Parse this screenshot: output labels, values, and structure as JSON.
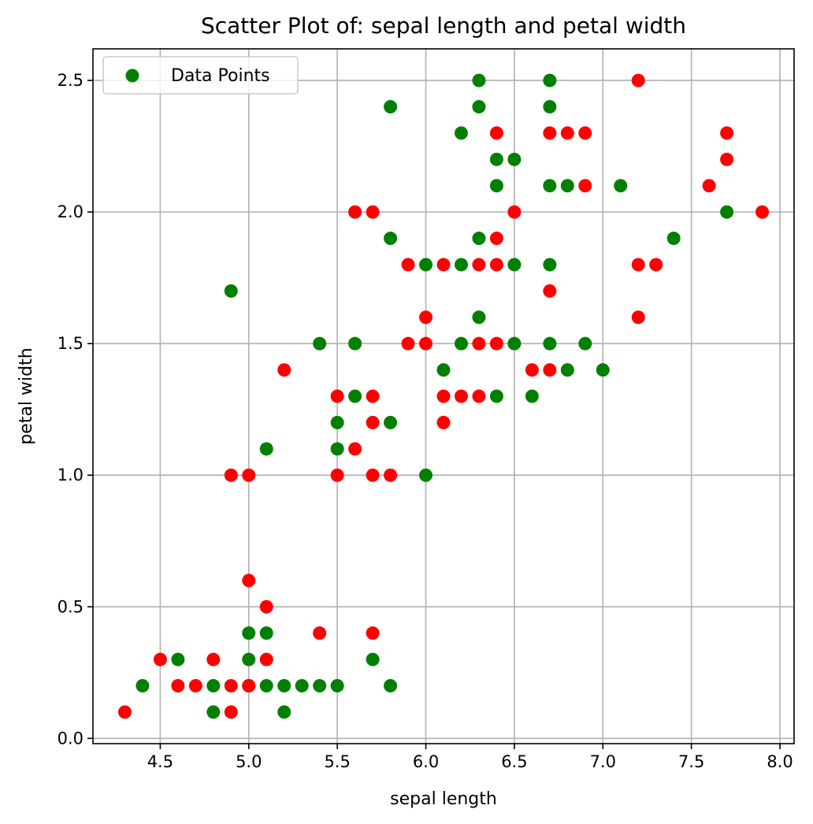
{
  "chart_data": {
    "type": "scatter",
    "title": "Scatter Plot of: sepal length and petal width",
    "xlabel": "sepal length",
    "ylabel": "petal width",
    "xlim": [
      4.12,
      8.08
    ],
    "ylim": [
      -0.02,
      2.62
    ],
    "xticks": [
      "4.5",
      "5.0",
      "5.5",
      "6.0",
      "6.5",
      "7.0",
      "7.5",
      "8.0"
    ],
    "yticks": [
      "0.0",
      "0.5",
      "1.0",
      "1.5",
      "2.0",
      "2.5"
    ],
    "grid": true,
    "legend": {
      "position": "top-left",
      "label": "Data Points",
      "color": "#008000"
    },
    "colors": {
      "green": "#008000",
      "red": "#ff0000"
    },
    "series": [
      {
        "color": "green",
        "points": [
          [
            4.4,
            0.2
          ],
          [
            4.6,
            0.3
          ],
          [
            4.8,
            0.1
          ],
          [
            4.8,
            0.2
          ],
          [
            5.0,
            0.2
          ],
          [
            5.0,
            0.3
          ],
          [
            5.0,
            0.4
          ],
          [
            5.1,
            0.2
          ],
          [
            5.1,
            0.4
          ],
          [
            5.2,
            0.1
          ],
          [
            5.2,
            0.2
          ],
          [
            5.3,
            0.2
          ],
          [
            5.4,
            0.2
          ],
          [
            5.5,
            0.2
          ],
          [
            5.7,
            0.3
          ],
          [
            5.8,
            0.2
          ],
          [
            4.9,
            1.7
          ],
          [
            5.1,
            1.1
          ],
          [
            5.4,
            1.5
          ],
          [
            5.5,
            1.1
          ],
          [
            5.5,
            1.2
          ],
          [
            5.6,
            1.3
          ],
          [
            5.6,
            1.5
          ],
          [
            5.8,
            1.2
          ],
          [
            5.8,
            1.9
          ],
          [
            5.8,
            2.4
          ],
          [
            6.0,
            1.0
          ],
          [
            6.0,
            1.8
          ],
          [
            6.1,
            1.4
          ],
          [
            6.2,
            1.5
          ],
          [
            6.2,
            1.8
          ],
          [
            6.2,
            2.3
          ],
          [
            6.3,
            1.6
          ],
          [
            6.3,
            1.9
          ],
          [
            6.3,
            2.4
          ],
          [
            6.3,
            2.5
          ],
          [
            6.4,
            1.3
          ],
          [
            6.4,
            2.1
          ],
          [
            6.4,
            2.2
          ],
          [
            6.5,
            1.5
          ],
          [
            6.5,
            1.8
          ],
          [
            6.5,
            2.2
          ],
          [
            6.6,
            1.3
          ],
          [
            6.7,
            1.5
          ],
          [
            6.7,
            1.8
          ],
          [
            6.7,
            2.1
          ],
          [
            6.7,
            2.4
          ],
          [
            6.7,
            2.5
          ],
          [
            6.8,
            1.4
          ],
          [
            6.8,
            2.1
          ],
          [
            6.9,
            1.5
          ],
          [
            7.0,
            1.4
          ],
          [
            7.1,
            2.1
          ],
          [
            7.4,
            1.9
          ],
          [
            7.7,
            2.0
          ]
        ]
      },
      {
        "color": "red",
        "points": [
          [
            4.3,
            0.1
          ],
          [
            4.5,
            0.3
          ],
          [
            4.6,
            0.2
          ],
          [
            4.7,
            0.2
          ],
          [
            4.8,
            0.3
          ],
          [
            4.9,
            0.1
          ],
          [
            4.9,
            0.2
          ],
          [
            5.0,
            0.2
          ],
          [
            5.0,
            0.6
          ],
          [
            5.1,
            0.3
          ],
          [
            5.1,
            0.5
          ],
          [
            5.4,
            0.4
          ],
          [
            5.7,
            0.4
          ],
          [
            4.9,
            1.0
          ],
          [
            5.0,
            1.0
          ],
          [
            5.2,
            1.4
          ],
          [
            5.5,
            1.0
          ],
          [
            5.5,
            1.3
          ],
          [
            5.6,
            1.1
          ],
          [
            5.6,
            2.0
          ],
          [
            5.7,
            1.0
          ],
          [
            5.7,
            1.2
          ],
          [
            5.7,
            1.3
          ],
          [
            5.7,
            2.0
          ],
          [
            5.8,
            1.0
          ],
          [
            5.9,
            1.5
          ],
          [
            5.9,
            1.8
          ],
          [
            6.0,
            1.5
          ],
          [
            6.0,
            1.6
          ],
          [
            6.1,
            1.2
          ],
          [
            6.1,
            1.3
          ],
          [
            6.1,
            1.8
          ],
          [
            6.2,
            1.3
          ],
          [
            6.3,
            1.3
          ],
          [
            6.3,
            1.5
          ],
          [
            6.3,
            1.8
          ],
          [
            6.4,
            1.5
          ],
          [
            6.4,
            1.8
          ],
          [
            6.4,
            1.9
          ],
          [
            6.4,
            2.3
          ],
          [
            6.5,
            2.0
          ],
          [
            6.6,
            1.4
          ],
          [
            6.7,
            1.4
          ],
          [
            6.7,
            1.7
          ],
          [
            6.7,
            2.3
          ],
          [
            6.8,
            2.3
          ],
          [
            6.9,
            2.1
          ],
          [
            6.9,
            2.3
          ],
          [
            7.2,
            1.6
          ],
          [
            7.2,
            1.8
          ],
          [
            7.2,
            2.5
          ],
          [
            7.3,
            1.8
          ],
          [
            7.6,
            2.1
          ],
          [
            7.7,
            2.2
          ],
          [
            7.7,
            2.3
          ],
          [
            7.9,
            2.0
          ]
        ]
      }
    ]
  }
}
